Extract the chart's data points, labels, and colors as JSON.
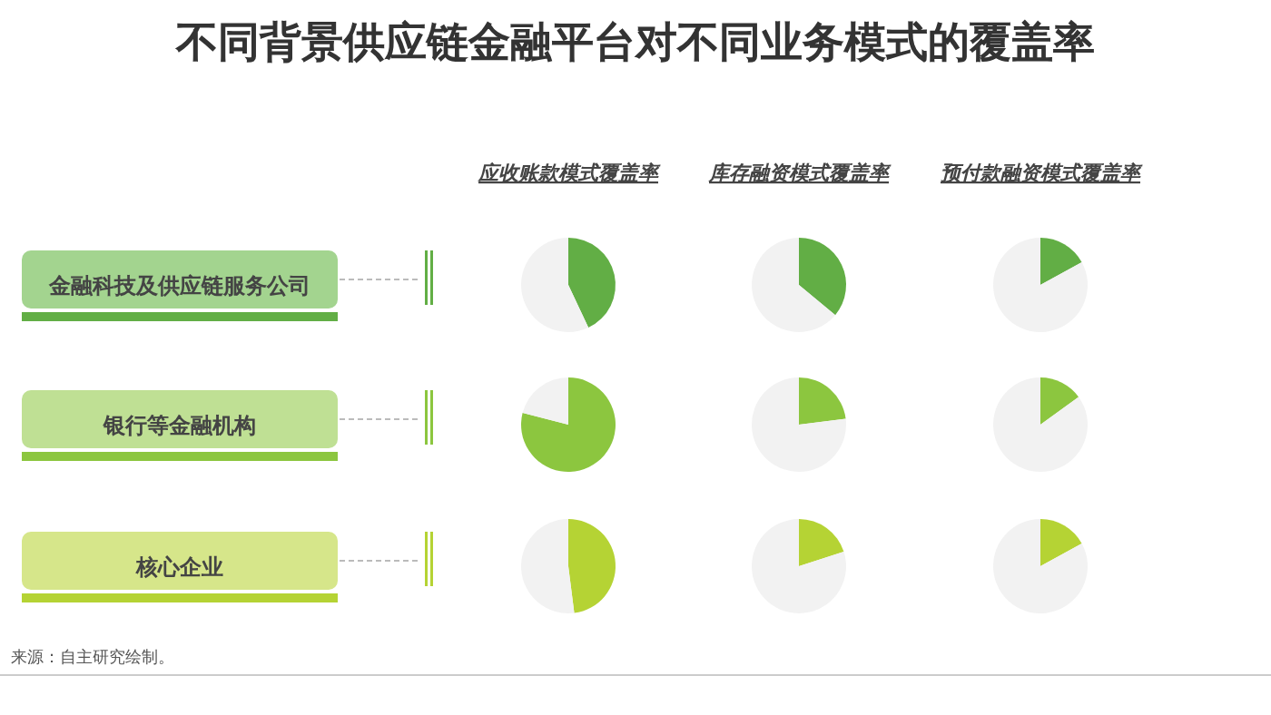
{
  "chart_data": [
    {
      "type": "other",
      "title": "不同背景供应链金融平台对不同业务模式的覆盖率",
      "categories": [
        "应收账款模式覆盖率",
        "库存融资模式覆盖率",
        "预付款融资模式覆盖率"
      ],
      "y_categories": [
        "金融科技及供应链服务公司",
        "银行等金融机构",
        "核心企业"
      ],
      "colors": [
        "#a3d48f",
        "#bfe094",
        "#d6e68a"
      ],
      "annotations": [
        "来源：自主研究绘制。"
      ]
    },
    {
      "type": "pie",
      "categories": [
        null,
        null
      ],
      "values": [
        43,
        57
      ],
      "colors": [
        "#62ae45",
        "#f2f2f2"
      ]
    },
    {
      "type": "pie",
      "categories": [
        null,
        null
      ],
      "values": [
        36,
        64
      ],
      "colors": [
        "#62ae45",
        "#f2f2f2"
      ]
    },
    {
      "type": "pie",
      "categories": [
        null,
        null
      ],
      "values": [
        17,
        83
      ],
      "colors": [
        "#62ae45",
        "#f2f2f2"
      ]
    },
    {
      "type": "pie",
      "categories": [
        null,
        null
      ],
      "values": [
        79,
        21
      ],
      "colors": [
        "#8cc63f",
        "#f2f2f2"
      ]
    },
    {
      "type": "pie",
      "categories": [
        null,
        null
      ],
      "values": [
        23,
        77
      ],
      "colors": [
        "#8cc63f",
        "#f2f2f2"
      ]
    },
    {
      "type": "pie",
      "categories": [
        null,
        null
      ],
      "values": [
        15,
        85
      ],
      "colors": [
        "#8cc63f",
        "#f2f2f2"
      ]
    },
    {
      "type": "pie",
      "categories": [
        null,
        null
      ],
      "values": [
        48,
        52
      ],
      "colors": [
        "#b5d334",
        "#f2f2f2"
      ]
    },
    {
      "type": "pie",
      "categories": [
        null,
        null
      ],
      "values": [
        20,
        80
      ],
      "colors": [
        "#b5d334",
        "#f2f2f2"
      ]
    },
    {
      "type": "pie",
      "categories": [
        null,
        null
      ],
      "values": [
        17,
        83
      ],
      "colors": [
        "#b5d334",
        "#f2f2f2"
      ]
    }
  ]
}
